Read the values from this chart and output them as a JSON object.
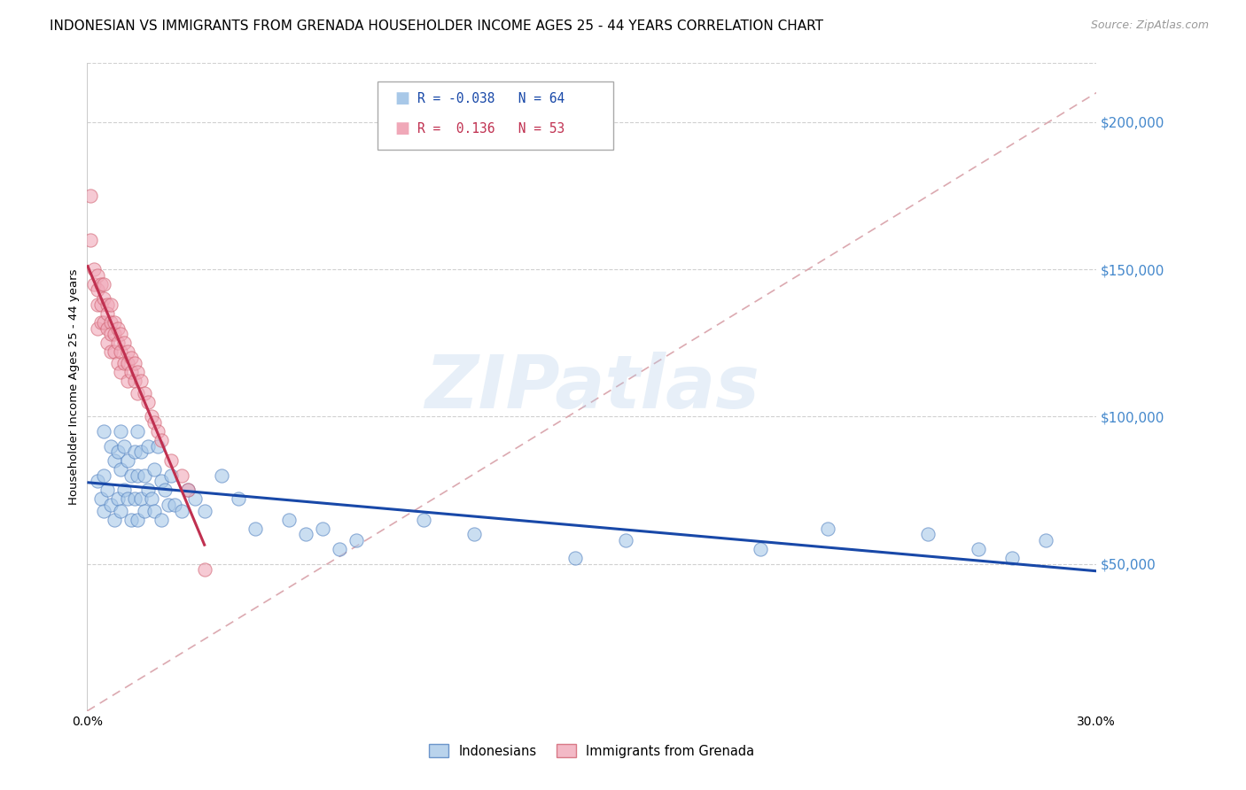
{
  "title": "INDONESIAN VS IMMIGRANTS FROM GRENADA HOUSEHOLDER INCOME AGES 25 - 44 YEARS CORRELATION CHART",
  "source": "Source: ZipAtlas.com",
  "ylabel": "Householder Income Ages 25 - 44 years",
  "legend_labels": [
    "Indonesians",
    "Immigrants from Grenada"
  ],
  "legend_R": [
    -0.038,
    0.136
  ],
  "legend_N": [
    64,
    53
  ],
  "blue_color": "#a8c8e8",
  "pink_color": "#f0a8b8",
  "blue_edge_color": "#5080c0",
  "pink_edge_color": "#d06070",
  "blue_line_color": "#1848a8",
  "pink_line_color": "#c03050",
  "diag_color": "#d8a0a8",
  "xlim": [
    0.0,
    0.3
  ],
  "ylim": [
    0,
    220000
  ],
  "yticks": [
    50000,
    100000,
    150000,
    200000
  ],
  "ytick_labels": [
    "$50,000",
    "$100,000",
    "$150,000",
    "$200,000"
  ],
  "xticks": [
    0.0,
    0.05,
    0.1,
    0.15,
    0.2,
    0.25,
    0.3
  ],
  "indonesian_x": [
    0.003,
    0.004,
    0.005,
    0.005,
    0.005,
    0.006,
    0.007,
    0.007,
    0.008,
    0.008,
    0.009,
    0.009,
    0.01,
    0.01,
    0.01,
    0.011,
    0.011,
    0.012,
    0.012,
    0.013,
    0.013,
    0.014,
    0.014,
    0.015,
    0.015,
    0.015,
    0.016,
    0.016,
    0.017,
    0.017,
    0.018,
    0.018,
    0.019,
    0.02,
    0.02,
    0.021,
    0.022,
    0.022,
    0.023,
    0.024,
    0.025,
    0.026,
    0.028,
    0.03,
    0.032,
    0.035,
    0.04,
    0.045,
    0.05,
    0.06,
    0.065,
    0.07,
    0.075,
    0.08,
    0.1,
    0.115,
    0.145,
    0.16,
    0.2,
    0.22,
    0.25,
    0.265,
    0.275,
    0.285
  ],
  "indonesian_y": [
    78000,
    72000,
    68000,
    95000,
    80000,
    75000,
    90000,
    70000,
    85000,
    65000,
    88000,
    72000,
    95000,
    82000,
    68000,
    90000,
    75000,
    85000,
    72000,
    80000,
    65000,
    88000,
    72000,
    95000,
    80000,
    65000,
    88000,
    72000,
    80000,
    68000,
    90000,
    75000,
    72000,
    82000,
    68000,
    90000,
    78000,
    65000,
    75000,
    70000,
    80000,
    70000,
    68000,
    75000,
    72000,
    68000,
    80000,
    72000,
    62000,
    65000,
    60000,
    62000,
    55000,
    58000,
    65000,
    60000,
    52000,
    58000,
    55000,
    62000,
    60000,
    55000,
    52000,
    58000
  ],
  "grenada_x": [
    0.001,
    0.001,
    0.002,
    0.002,
    0.003,
    0.003,
    0.003,
    0.003,
    0.004,
    0.004,
    0.004,
    0.005,
    0.005,
    0.005,
    0.006,
    0.006,
    0.006,
    0.006,
    0.007,
    0.007,
    0.007,
    0.007,
    0.008,
    0.008,
    0.008,
    0.009,
    0.009,
    0.009,
    0.01,
    0.01,
    0.01,
    0.011,
    0.011,
    0.012,
    0.012,
    0.012,
    0.013,
    0.013,
    0.014,
    0.014,
    0.015,
    0.015,
    0.016,
    0.017,
    0.018,
    0.019,
    0.02,
    0.021,
    0.022,
    0.025,
    0.028,
    0.03,
    0.035
  ],
  "grenada_y": [
    175000,
    160000,
    150000,
    145000,
    148000,
    143000,
    138000,
    130000,
    145000,
    138000,
    132000,
    145000,
    140000,
    132000,
    138000,
    135000,
    130000,
    125000,
    138000,
    132000,
    128000,
    122000,
    132000,
    128000,
    122000,
    130000,
    125000,
    118000,
    128000,
    122000,
    115000,
    125000,
    118000,
    122000,
    118000,
    112000,
    120000,
    115000,
    118000,
    112000,
    115000,
    108000,
    112000,
    108000,
    105000,
    100000,
    98000,
    95000,
    92000,
    85000,
    80000,
    75000,
    48000
  ],
  "title_fontsize": 11,
  "axis_label_fontsize": 9.5,
  "tick_fontsize": 10,
  "source_fontsize": 9,
  "marker_size": 120,
  "marker_alpha": 0.6,
  "watermark_text": "ZIPatlas",
  "watermark_fontsize": 60,
  "watermark_color": "#b0cce8",
  "watermark_alpha": 0.3
}
